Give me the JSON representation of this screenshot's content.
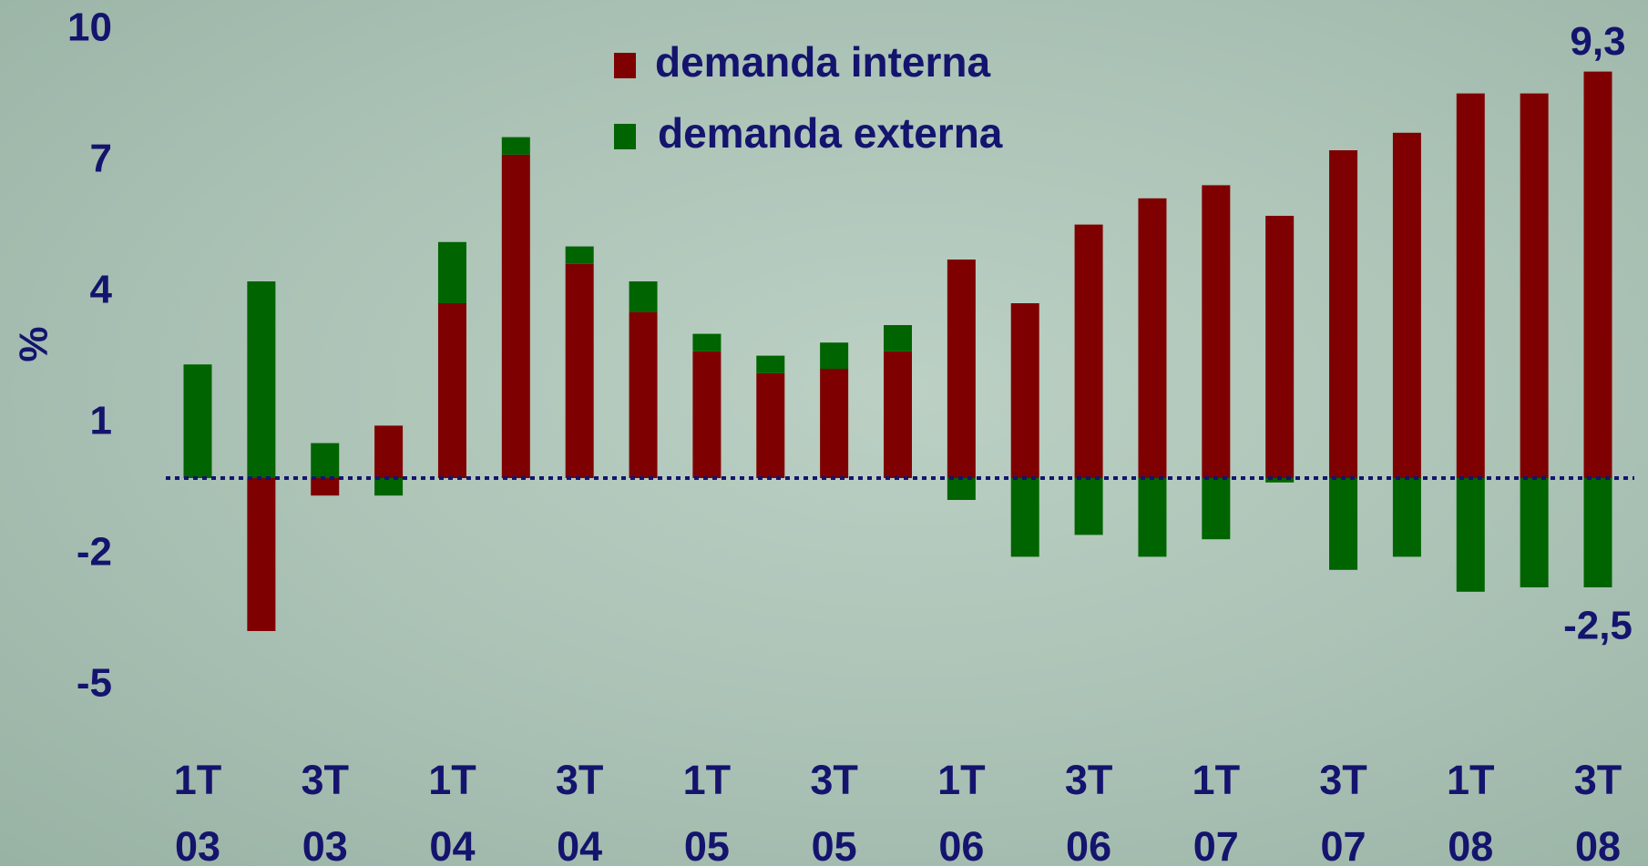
{
  "chart_data": {
    "type": "bar",
    "stacked": true,
    "ylabel": "%",
    "categories": [
      "1T\n03",
      null,
      "3T\n03",
      null,
      "1T\n04",
      null,
      "3T\n04",
      null,
      "1T\n05",
      null,
      "3T\n05",
      null,
      "1T\n06",
      null,
      "3T\n06",
      null,
      "1T\n07",
      null,
      "3T\n07",
      null,
      "1T\n08",
      null,
      "3T\n08"
    ],
    "series": [
      {
        "name": "demanda interna",
        "color": "#7f0000",
        "values": [
          0,
          -3.5,
          -0.4,
          1.2,
          4.0,
          7.4,
          4.9,
          3.8,
          2.9,
          2.4,
          2.5,
          2.9,
          5.0,
          4.0,
          5.8,
          6.4,
          6.7,
          6.0,
          7.5,
          7.9,
          8.8,
          8.8,
          9.3
        ],
        "value_labels": [
          null,
          null,
          null,
          null,
          null,
          null,
          null,
          null,
          null,
          null,
          null,
          null,
          null,
          null,
          null,
          null,
          null,
          null,
          null,
          null,
          null,
          null,
          "9,3"
        ]
      },
      {
        "name": "demanda externa",
        "color": "#006400",
        "values": [
          2.6,
          4.5,
          0.8,
          -0.4,
          1.4,
          0.4,
          0.4,
          0.7,
          0.4,
          0.4,
          0.6,
          0.6,
          -0.5,
          -1.8,
          -1.3,
          -1.8,
          -1.4,
          -0.1,
          -2.1,
          -1.8,
          -2.6,
          -2.5,
          -2.5
        ],
        "value_labels": [
          null,
          null,
          null,
          null,
          null,
          null,
          null,
          null,
          null,
          null,
          null,
          null,
          null,
          null,
          null,
          null,
          null,
          null,
          null,
          null,
          null,
          null,
          "-2,5"
        ]
      }
    ],
    "ylim": [
      -5,
      10
    ],
    "yticks": [
      10,
      7,
      4,
      1,
      -2,
      -5
    ],
    "grid": false,
    "legend": "top"
  }
}
